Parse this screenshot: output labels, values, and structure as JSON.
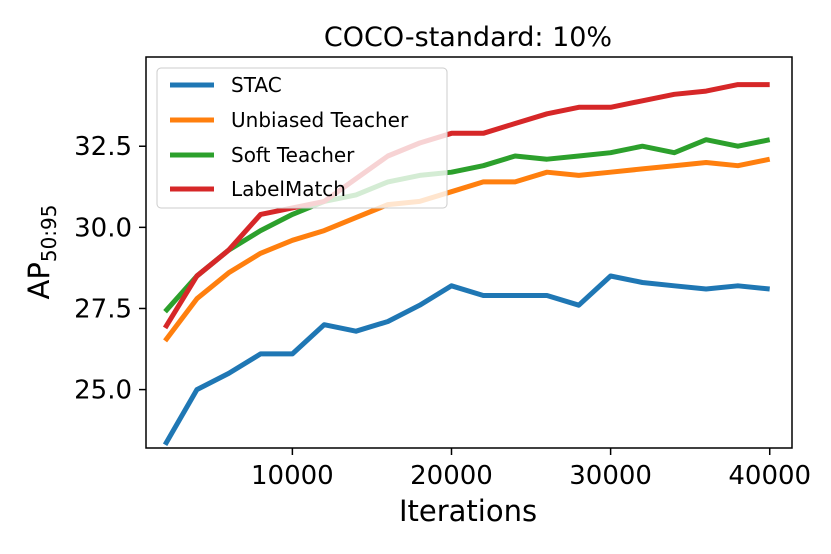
{
  "chart_data": {
    "type": "line",
    "title": "COCO-standard: 10%",
    "xlabel": "Iterations",
    "ylabel": "AP",
    "ylabel_sub": "50:95",
    "xlim": [
      800,
      41400
    ],
    "ylim": [
      23.2,
      35.25
    ],
    "xticks": [
      10000,
      20000,
      30000,
      40000
    ],
    "xtick_labels": [
      "10000",
      "20000",
      "30000",
      "40000"
    ],
    "yticks": [
      25.0,
      27.5,
      30.0,
      32.5
    ],
    "ytick_labels": [
      "25.0",
      "27.5",
      "30.0",
      "32.5"
    ],
    "x": [
      2000,
      4000,
      6000,
      8000,
      10000,
      12000,
      14000,
      16000,
      18000,
      20000,
      22000,
      24000,
      26000,
      28000,
      30000,
      32000,
      34000,
      36000,
      38000,
      40000
    ],
    "legend_position": "top-left",
    "series": [
      {
        "name": "STAC",
        "color": "#1f77b4",
        "values": [
          23.3,
          25.0,
          25.5,
          26.1,
          26.1,
          27.0,
          26.8,
          27.1,
          27.6,
          28.2,
          27.9,
          27.9,
          27.9,
          27.6,
          28.5,
          28.3,
          28.2,
          28.1,
          28.2,
          28.1
        ]
      },
      {
        "name": "Unbiased Teacher",
        "color": "#ff7f0e",
        "values": [
          26.5,
          27.8,
          28.6,
          29.2,
          29.6,
          29.9,
          30.3,
          30.7,
          30.8,
          31.1,
          31.4,
          31.4,
          31.7,
          31.6,
          31.7,
          31.8,
          31.9,
          32.0,
          31.9,
          32.1
        ]
      },
      {
        "name": "Soft Teacher",
        "color": "#2ca02c",
        "values": [
          27.4,
          28.5,
          29.3,
          29.9,
          30.4,
          30.8,
          31.0,
          31.4,
          31.6,
          31.7,
          31.9,
          32.2,
          32.1,
          32.2,
          32.3,
          32.5,
          32.3,
          32.7,
          32.5,
          32.7
        ]
      },
      {
        "name": "LabelMatch",
        "color": "#d62728",
        "values": [
          26.9,
          28.5,
          29.3,
          30.4,
          30.6,
          30.8,
          31.5,
          32.2,
          32.6,
          32.9,
          32.9,
          33.2,
          33.5,
          33.7,
          33.7,
          33.9,
          34.1,
          34.2,
          34.4,
          34.4
        ]
      }
    ]
  }
}
